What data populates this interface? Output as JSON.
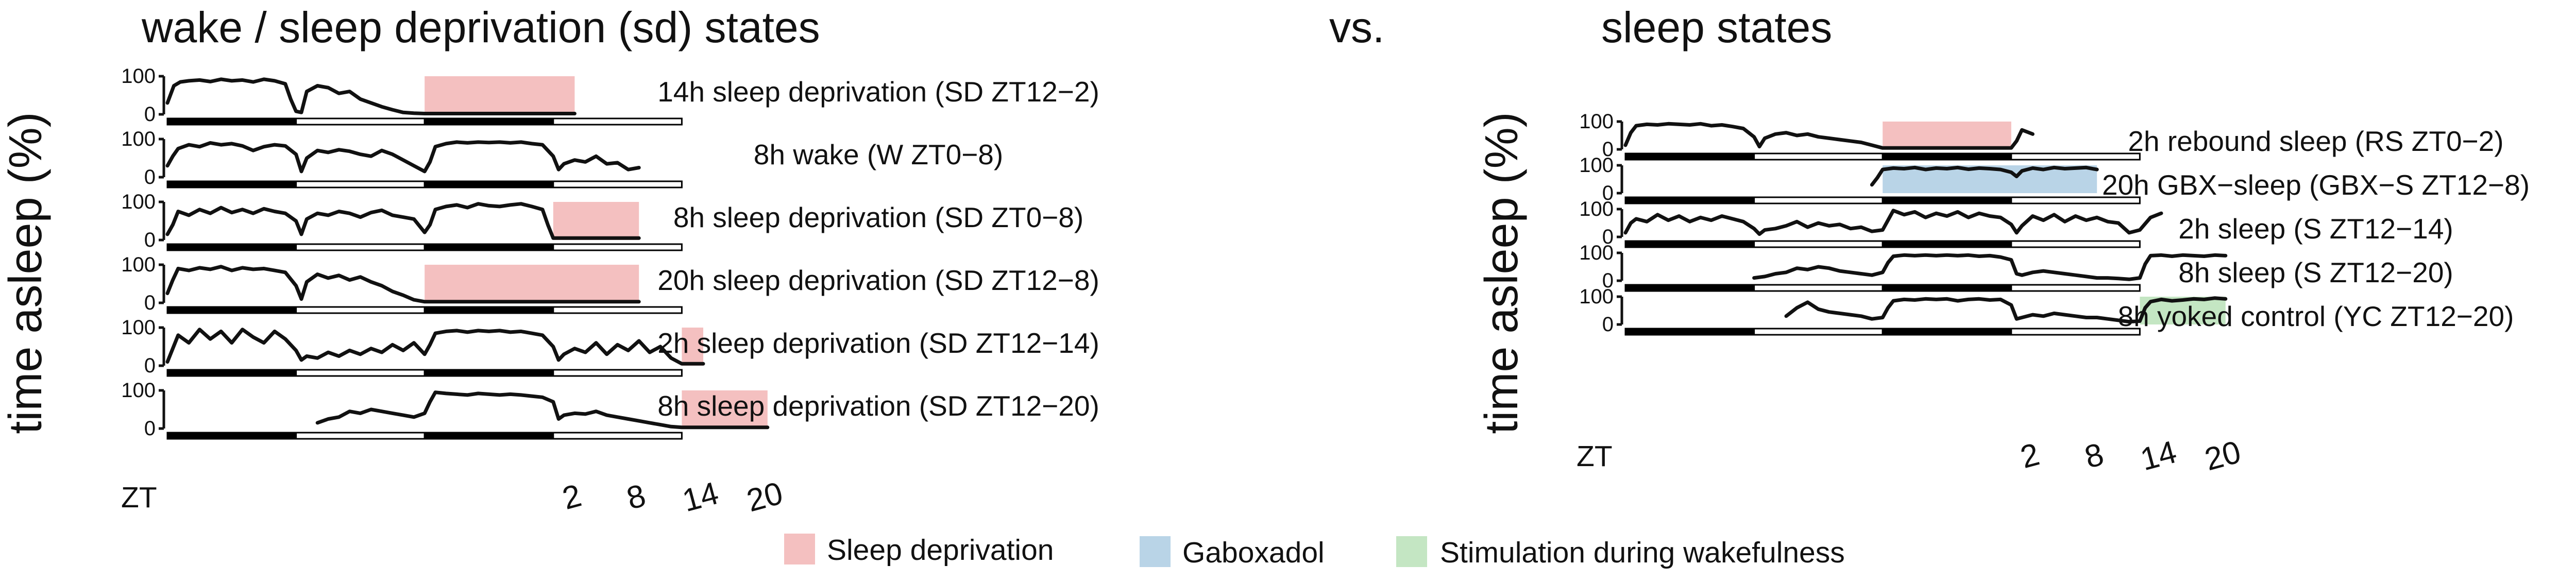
{
  "chart_data": [
    {
      "type": "line",
      "title": "wake / sleep deprivation (sd) states",
      "ylabel": "time asleep (%)",
      "xlabel": "ZT",
      "x_unit": "hours",
      "x_start_zt": 12,
      "xlim_hours": [
        0,
        48
      ],
      "ylim": [
        0,
        100
      ],
      "yticks": [
        0,
        100
      ],
      "light_dark_bar": [
        {
          "from": 0,
          "to": 12,
          "phase": "dark"
        },
        {
          "from": 12,
          "to": 24,
          "phase": "light"
        },
        {
          "from": 24,
          "to": 36,
          "phase": "dark"
        },
        {
          "from": 36,
          "to": 48,
          "phase": "light"
        }
      ],
      "bottom_ticks": [
        {
          "hours": 38,
          "label": "2"
        },
        {
          "hours": 44,
          "label": "8"
        },
        {
          "hours": 50,
          "label": "14"
        },
        {
          "hours": 56,
          "label": "20"
        }
      ],
      "series": [
        {
          "name": "14h sleep deprivation (SD ZT12−2)",
          "shade": {
            "from": 24,
            "to": 38,
            "color": "pink"
          },
          "hours": [
            0,
            0.6,
            1.2,
            2,
            3,
            4,
            5,
            6,
            7,
            8,
            9,
            10,
            11,
            11.5,
            12,
            12.5,
            13,
            14,
            15,
            16,
            17,
            18,
            19,
            20,
            21,
            22,
            23,
            24,
            38
          ],
          "values": [
            30,
            75,
            85,
            88,
            90,
            86,
            92,
            88,
            90,
            85,
            92,
            88,
            80,
            40,
            8,
            5,
            60,
            75,
            70,
            55,
            60,
            40,
            30,
            20,
            12,
            5,
            3,
            2,
            2
          ]
        },
        {
          "name": "8h wake (W ZT0−8)",
          "shade": null,
          "hours": [
            0,
            0.5,
            1,
            2,
            3,
            4,
            5,
            6,
            7,
            8,
            9,
            10,
            11,
            12,
            12.5,
            13,
            14,
            15,
            16,
            17,
            18,
            19,
            20,
            21,
            22,
            23,
            24,
            24.5,
            25,
            26,
            27,
            28,
            29,
            30,
            31,
            32,
            33,
            34,
            35,
            36,
            36.5,
            37,
            38,
            39,
            40,
            41,
            42,
            43,
            44
          ],
          "values": [
            30,
            55,
            75,
            85,
            80,
            90,
            85,
            88,
            82,
            70,
            80,
            85,
            82,
            60,
            15,
            50,
            70,
            65,
            72,
            68,
            60,
            55,
            70,
            60,
            45,
            30,
            15,
            40,
            80,
            88,
            92,
            90,
            92,
            91,
            92,
            90,
            92,
            88,
            85,
            55,
            20,
            35,
            45,
            40,
            55,
            35,
            38,
            20,
            25
          ]
        },
        {
          "name": "8h sleep deprivation (SD ZT0−8)",
          "shade": {
            "from": 36,
            "to": 44,
            "color": "pink"
          },
          "hours": [
            0,
            0.5,
            1,
            2,
            3,
            4,
            5,
            6,
            7,
            8,
            9,
            10,
            11,
            12,
            12.5,
            13,
            14,
            15,
            16,
            17,
            18,
            19,
            20,
            21,
            22,
            23,
            24,
            24.5,
            25,
            26,
            27,
            28,
            29,
            30,
            31,
            32,
            33,
            34,
            35,
            35.5,
            36,
            44
          ],
          "values": [
            15,
            40,
            75,
            65,
            80,
            70,
            85,
            72,
            80,
            70,
            82,
            75,
            70,
            50,
            15,
            55,
            70,
            65,
            75,
            70,
            60,
            72,
            78,
            65,
            60,
            55,
            20,
            40,
            80,
            88,
            92,
            85,
            95,
            90,
            88,
            92,
            95,
            88,
            80,
            40,
            5,
            5
          ]
        },
        {
          "name": "20h sleep deprivation (SD ZT12−8)",
          "shade": {
            "from": 24,
            "to": 44,
            "color": "pink"
          },
          "hours": [
            0,
            0.5,
            1,
            2,
            3,
            4,
            5,
            6,
            7,
            8,
            9,
            10,
            11,
            12,
            12.5,
            13,
            14,
            15,
            16,
            17,
            18,
            19,
            20,
            21,
            22,
            23,
            24,
            44
          ],
          "values": [
            25,
            60,
            90,
            85,
            92,
            88,
            95,
            85,
            92,
            88,
            90,
            85,
            80,
            45,
            10,
            55,
            75,
            65,
            72,
            60,
            68,
            55,
            45,
            30,
            20,
            8,
            3,
            3
          ]
        },
        {
          "name": "2h sleep deprivation (SD ZT12−14)",
          "shade": {
            "from": 48,
            "to": 50,
            "color": "pink"
          },
          "hours": [
            0,
            0.5,
            1,
            2,
            3,
            4,
            5,
            6,
            7,
            8,
            9,
            10,
            11,
            12,
            12.5,
            13,
            14,
            15,
            16,
            17,
            18,
            19,
            20,
            21,
            22,
            23,
            24,
            24.5,
            25,
            26,
            27,
            28,
            29,
            30,
            31,
            32,
            33,
            34,
            35,
            36,
            36.5,
            37,
            38,
            39,
            40,
            41,
            42,
            43,
            44,
            45,
            46,
            47,
            48,
            50
          ],
          "values": [
            10,
            45,
            80,
            60,
            95,
            70,
            90,
            60,
            95,
            75,
            60,
            90,
            70,
            40,
            15,
            25,
            20,
            35,
            25,
            40,
            30,
            45,
            35,
            55,
            40,
            60,
            30,
            55,
            85,
            90,
            92,
            88,
            92,
            90,
            92,
            88,
            90,
            85,
            80,
            50,
            15,
            30,
            45,
            35,
            60,
            30,
            55,
            40,
            65,
            35,
            50,
            20,
            5,
            5
          ]
        },
        {
          "name": "8h sleep deprivation (SD ZT12−20)",
          "shade": {
            "from": 48,
            "to": 56,
            "color": "pink"
          },
          "hours": [
            14,
            15,
            16,
            17,
            18,
            19,
            20,
            21,
            22,
            23,
            24,
            24.5,
            25,
            26,
            27,
            28,
            29,
            30,
            31,
            32,
            33,
            34,
            35,
            36,
            36.5,
            37,
            38,
            39,
            40,
            41,
            42,
            43,
            44,
            45,
            46,
            47,
            48,
            56
          ],
          "values": [
            15,
            25,
            30,
            45,
            40,
            50,
            45,
            40,
            35,
            30,
            40,
            70,
            95,
            92,
            90,
            88,
            92,
            90,
            88,
            90,
            88,
            85,
            82,
            70,
            25,
            35,
            40,
            38,
            45,
            35,
            30,
            25,
            20,
            15,
            10,
            5,
            3,
            3
          ]
        }
      ]
    },
    {
      "type": "line",
      "title": "sleep states",
      "ylabel": "time asleep (%)",
      "xlabel": "ZT",
      "x_unit": "hours",
      "x_start_zt": 12,
      "xlim_hours": [
        0,
        48
      ],
      "ylim": [
        0,
        100
      ],
      "yticks": [
        0,
        100
      ],
      "light_dark_bar": [
        {
          "from": 0,
          "to": 12,
          "phase": "dark"
        },
        {
          "from": 12,
          "to": 24,
          "phase": "light"
        },
        {
          "from": 24,
          "to": 36,
          "phase": "dark"
        },
        {
          "from": 36,
          "to": 48,
          "phase": "light"
        }
      ],
      "bottom_ticks": [
        {
          "hours": 38,
          "label": "2"
        },
        {
          "hours": 44,
          "label": "8"
        },
        {
          "hours": 50,
          "label": "14"
        },
        {
          "hours": 56,
          "label": "20"
        }
      ],
      "series": [
        {
          "name": "2h rebound sleep (RS ZT0−2)",
          "shade": {
            "from": 24,
            "to": 36,
            "color": "pink"
          },
          "hours": [
            0,
            0.5,
            1,
            2,
            3,
            4,
            5,
            6,
            7,
            8,
            9,
            10,
            11,
            12,
            12.5,
            13,
            14,
            15,
            16,
            17,
            18,
            19,
            20,
            21,
            22,
            23,
            24,
            36,
            36.5,
            37,
            38
          ],
          "values": [
            15,
            60,
            85,
            90,
            88,
            92,
            90,
            88,
            92,
            85,
            88,
            82,
            75,
            45,
            10,
            40,
            55,
            60,
            50,
            55,
            45,
            40,
            35,
            30,
            25,
            15,
            5,
            5,
            30,
            70,
            55
          ]
        },
        {
          "name": "20h GBX−sleep (GBX−S ZT12−8)",
          "shade": {
            "from": 24,
            "to": 44,
            "color": "blue"
          },
          "hours": [
            23,
            23.5,
            24,
            25,
            26,
            27,
            28,
            29,
            30,
            31,
            32,
            33,
            34,
            35,
            36,
            36.5,
            37,
            38,
            39,
            40,
            41,
            42,
            43,
            44
          ],
          "values": [
            30,
            55,
            85,
            90,
            88,
            92,
            85,
            90,
            88,
            92,
            86,
            90,
            88,
            85,
            75,
            60,
            80,
            90,
            85,
            92,
            88,
            90,
            92,
            85
          ]
        },
        {
          "name": "2h sleep (S ZT12−14)",
          "shade": null,
          "hours": [
            0,
            0.5,
            1,
            2,
            3,
            4,
            5,
            6,
            7,
            8,
            9,
            10,
            11,
            12,
            12.5,
            13,
            14,
            15,
            16,
            17,
            18,
            19,
            20,
            21,
            22,
            23,
            24,
            24.5,
            25,
            26,
            27,
            28,
            29,
            30,
            31,
            32,
            33,
            34,
            35,
            36,
            36.5,
            37,
            38,
            39,
            40,
            41,
            42,
            43,
            44,
            45,
            46,
            47,
            48,
            49,
            50
          ],
          "values": [
            15,
            50,
            65,
            55,
            80,
            60,
            75,
            55,
            70,
            60,
            75,
            65,
            55,
            30,
            10,
            25,
            30,
            40,
            55,
            35,
            50,
            40,
            45,
            30,
            35,
            20,
            25,
            60,
            95,
            80,
            90,
            70,
            85,
            75,
            90,
            70,
            85,
            75,
            70,
            45,
            15,
            40,
            75,
            60,
            80,
            55,
            75,
            60,
            70,
            55,
            50,
            15,
            25,
            70,
            85
          ]
        },
        {
          "name": "8h sleep (S ZT12−20)",
          "shade": null,
          "hours": [
            12,
            13,
            14,
            15,
            16,
            17,
            18,
            19,
            20,
            21,
            22,
            23,
            24,
            24.5,
            25,
            26,
            27,
            28,
            29,
            30,
            31,
            32,
            33,
            34,
            35,
            36,
            36.5,
            37,
            38,
            39,
            40,
            41,
            42,
            43,
            44,
            45,
            46,
            47,
            48,
            48.5,
            49,
            50,
            51,
            52,
            53,
            54,
            55,
            56
          ],
          "values": [
            10,
            15,
            25,
            30,
            45,
            40,
            50,
            45,
            35,
            30,
            25,
            20,
            30,
            65,
            88,
            92,
            90,
            92,
            90,
            92,
            90,
            92,
            88,
            90,
            85,
            75,
            25,
            20,
            30,
            35,
            30,
            25,
            20,
            15,
            10,
            10,
            8,
            5,
            10,
            60,
            90,
            92,
            88,
            92,
            90,
            88,
            92,
            90
          ]
        },
        {
          "name": "8h yoked control (YC ZT12−20)",
          "shade": {
            "from": 48,
            "to": 56,
            "color": "green"
          },
          "hours": [
            15,
            16,
            17,
            18,
            19,
            20,
            21,
            22,
            23,
            24,
            24.5,
            25,
            26,
            27,
            28,
            29,
            30,
            31,
            32,
            33,
            34,
            35,
            36,
            36.5,
            37,
            38,
            39,
            40,
            41,
            42,
            43,
            44,
            45,
            46,
            47,
            48,
            48.5,
            49,
            50,
            51,
            52,
            53,
            54,
            55,
            56
          ],
          "values": [
            30,
            60,
            80,
            55,
            45,
            40,
            35,
            30,
            20,
            25,
            60,
            85,
            90,
            88,
            92,
            90,
            92,
            85,
            90,
            92,
            88,
            90,
            70,
            20,
            25,
            35,
            30,
            40,
            35,
            30,
            25,
            25,
            20,
            15,
            10,
            12,
            60,
            82,
            90,
            85,
            88,
            92,
            90,
            95,
            92
          ]
        }
      ]
    }
  ],
  "header": {
    "vs_label": "vs."
  },
  "legend": [
    {
      "label": "Sleep deprivation",
      "color": "#f4c0c0"
    },
    {
      "label": "Gaboxadol",
      "color": "#b9d4e7"
    },
    {
      "label": "Stimulation during wakefulness",
      "color": "#c4e6c3"
    }
  ],
  "colors": {
    "pink": "#f4c0c0",
    "blue": "#b9d4e7",
    "green": "#c4e6c3",
    "line": "#111111",
    "bar_dark": "#000000",
    "bar_light": "#ffffff"
  }
}
